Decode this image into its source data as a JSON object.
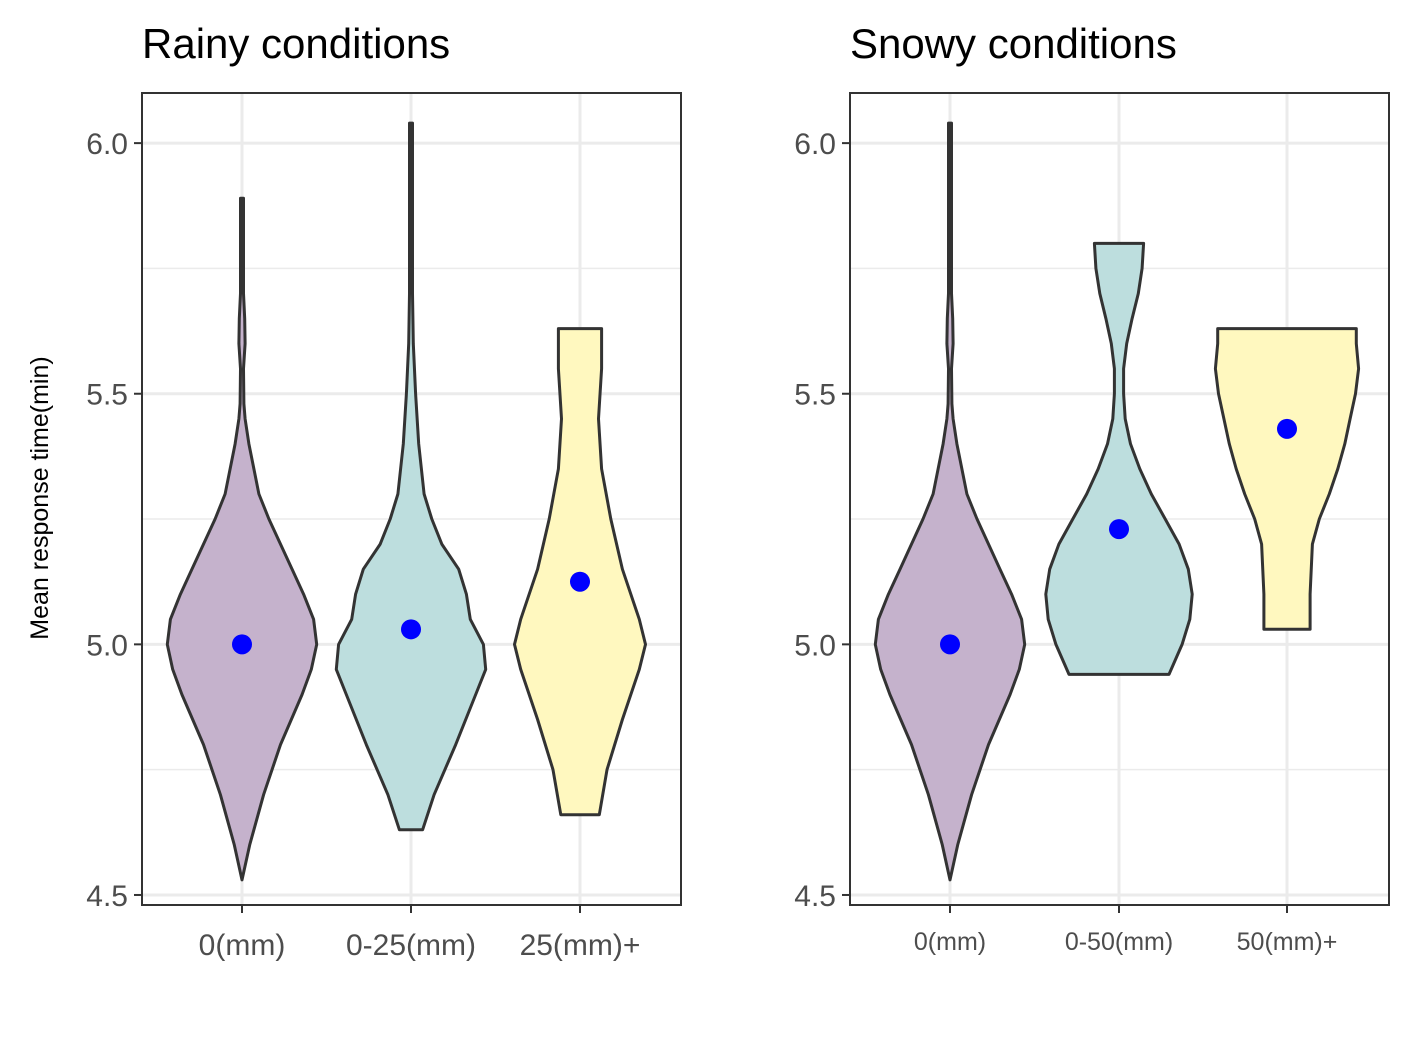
{
  "ylabel": "Mean response time(min)",
  "chart_data": [
    {
      "type": "violin",
      "title": "Rainy conditions",
      "xlabel": "",
      "ylabel": "Mean response time(min)",
      "ylim": [
        4.48,
        6.1
      ],
      "yticks": [
        "4.5",
        "5.0",
        "5.5",
        "6.0"
      ],
      "ytick_values": [
        4.5,
        5.0,
        5.5,
        6.0
      ],
      "categories": [
        "0(mm)",
        "0-25(mm)",
        "25(mm)+"
      ],
      "means": [
        5.0,
        5.03,
        5.125
      ],
      "ranges": [
        [
          4.53,
          5.89
        ],
        [
          4.63,
          6.04
        ],
        [
          4.66,
          5.63
        ]
      ],
      "fill_colors": [
        "#c5b2cc",
        "#bddede",
        "#fff8bf"
      ],
      "mean_point_color": "#0000ff",
      "grid": true,
      "violins": [
        {
          "profile": [
            [
              4.53,
              0.0
            ],
            [
              4.6,
              0.1
            ],
            [
              4.7,
              0.28
            ],
            [
              4.8,
              0.5
            ],
            [
              4.9,
              0.78
            ],
            [
              4.95,
              0.9
            ],
            [
              5.0,
              0.97
            ],
            [
              5.05,
              0.93
            ],
            [
              5.1,
              0.8
            ],
            [
              5.15,
              0.65
            ],
            [
              5.2,
              0.5
            ],
            [
              5.25,
              0.35
            ],
            [
              5.3,
              0.22
            ],
            [
              5.4,
              0.09
            ],
            [
              5.45,
              0.04
            ],
            [
              5.48,
              0.025
            ],
            [
              5.55,
              0.02
            ],
            [
              5.6,
              0.04
            ],
            [
              5.65,
              0.035
            ],
            [
              5.7,
              0.02
            ],
            [
              5.8,
              0.02
            ],
            [
              5.89,
              0.02
            ]
          ]
        },
        {
          "profile": [
            [
              4.63,
              0.15
            ],
            [
              4.7,
              0.3
            ],
            [
              4.8,
              0.58
            ],
            [
              4.9,
              0.84
            ],
            [
              4.95,
              0.97
            ],
            [
              5.0,
              0.94
            ],
            [
              5.05,
              0.77
            ],
            [
              5.1,
              0.72
            ],
            [
              5.15,
              0.62
            ],
            [
              5.2,
              0.4
            ],
            [
              5.25,
              0.27
            ],
            [
              5.3,
              0.17
            ],
            [
              5.4,
              0.1
            ],
            [
              5.5,
              0.06
            ],
            [
              5.6,
              0.03
            ],
            [
              5.7,
              0.02
            ],
            [
              5.8,
              0.02
            ],
            [
              5.9,
              0.02
            ],
            [
              6.04,
              0.02
            ]
          ]
        },
        {
          "profile": [
            [
              4.66,
              0.25
            ],
            [
              4.75,
              0.35
            ],
            [
              4.85,
              0.55
            ],
            [
              4.95,
              0.77
            ],
            [
              5.0,
              0.85
            ],
            [
              5.05,
              0.77
            ],
            [
              5.15,
              0.55
            ],
            [
              5.25,
              0.4
            ],
            [
              5.35,
              0.28
            ],
            [
              5.45,
              0.24
            ],
            [
              5.55,
              0.28
            ],
            [
              5.63,
              0.28
            ]
          ]
        }
      ]
    },
    {
      "type": "violin",
      "title": "Snowy conditions",
      "xlabel": "",
      "ylabel": "",
      "ylim": [
        4.48,
        6.1
      ],
      "yticks": [
        "4.5",
        "5.0",
        "5.5",
        "6.0"
      ],
      "ytick_values": [
        4.5,
        5.0,
        5.5,
        6.0
      ],
      "categories": [
        "0(mm)",
        "0-50(mm)",
        "50(mm)+"
      ],
      "means": [
        5.0,
        5.23,
        5.43
      ],
      "ranges": [
        [
          4.53,
          6.04
        ],
        [
          4.94,
          5.8
        ],
        [
          5.03,
          5.63
        ]
      ],
      "fill_colors": [
        "#c5b2cc",
        "#bddede",
        "#fff8bf"
      ],
      "mean_point_color": "#0000ff",
      "grid": true,
      "violins": [
        {
          "profile": [
            [
              4.53,
              0.0
            ],
            [
              4.6,
              0.1
            ],
            [
              4.7,
              0.28
            ],
            [
              4.8,
              0.5
            ],
            [
              4.9,
              0.78
            ],
            [
              4.95,
              0.9
            ],
            [
              5.0,
              0.97
            ],
            [
              5.05,
              0.93
            ],
            [
              5.1,
              0.8
            ],
            [
              5.15,
              0.65
            ],
            [
              5.2,
              0.5
            ],
            [
              5.25,
              0.35
            ],
            [
              5.3,
              0.22
            ],
            [
              5.4,
              0.09
            ],
            [
              5.45,
              0.04
            ],
            [
              5.48,
              0.025
            ],
            [
              5.55,
              0.02
            ],
            [
              5.6,
              0.04
            ],
            [
              5.65,
              0.035
            ],
            [
              5.7,
              0.02
            ],
            [
              5.8,
              0.02
            ],
            [
              5.9,
              0.02
            ],
            [
              6.04,
              0.02
            ]
          ]
        },
        {
          "profile": [
            [
              4.94,
              0.65
            ],
            [
              5.0,
              0.82
            ],
            [
              5.05,
              0.92
            ],
            [
              5.1,
              0.95
            ],
            [
              5.15,
              0.9
            ],
            [
              5.2,
              0.78
            ],
            [
              5.25,
              0.6
            ],
            [
              5.3,
              0.42
            ],
            [
              5.35,
              0.27
            ],
            [
              5.4,
              0.15
            ],
            [
              5.45,
              0.08
            ],
            [
              5.5,
              0.06
            ],
            [
              5.55,
              0.06
            ],
            [
              5.6,
              0.1
            ],
            [
              5.65,
              0.17
            ],
            [
              5.7,
              0.25
            ],
            [
              5.75,
              0.3
            ],
            [
              5.8,
              0.32
            ]
          ]
        },
        {
          "profile": [
            [
              5.03,
              0.3
            ],
            [
              5.1,
              0.3
            ],
            [
              5.2,
              0.33
            ],
            [
              5.25,
              0.42
            ],
            [
              5.3,
              0.55
            ],
            [
              5.35,
              0.66
            ],
            [
              5.4,
              0.75
            ],
            [
              5.45,
              0.82
            ],
            [
              5.5,
              0.89
            ],
            [
              5.55,
              0.93
            ],
            [
              5.6,
              0.9
            ],
            [
              5.63,
              0.9
            ]
          ]
        }
      ]
    }
  ]
}
